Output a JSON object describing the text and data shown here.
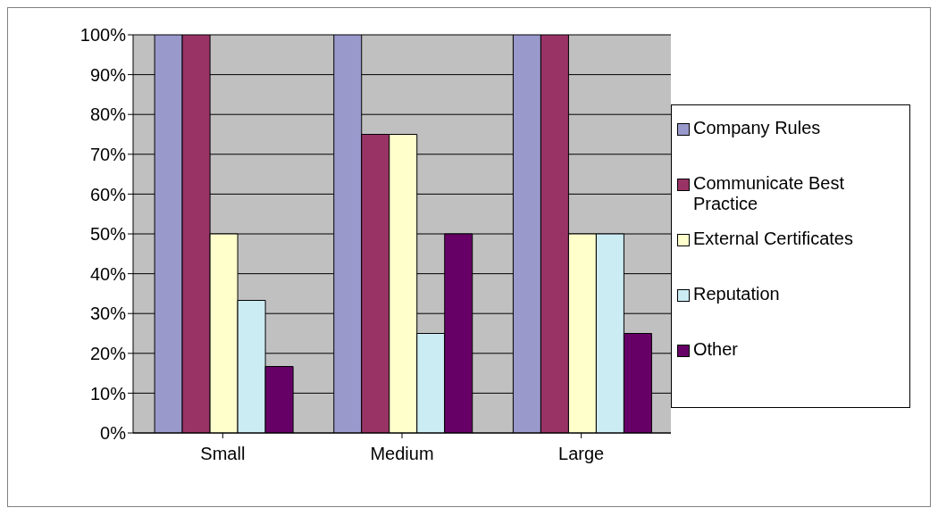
{
  "chart_data": {
    "type": "bar",
    "categories": [
      "Small",
      "Medium",
      "Large"
    ],
    "series": [
      {
        "name": "Company Rules",
        "color": "#9999cc",
        "values": [
          100,
          100,
          100
        ]
      },
      {
        "name": "Communicate Best Practice",
        "color": "#993366",
        "values": [
          100,
          75,
          100
        ]
      },
      {
        "name": "External Certificates",
        "color": "#ffffcc",
        "values": [
          50,
          75,
          50
        ]
      },
      {
        "name": "Reputation",
        "color": "#ccecf4",
        "values": [
          33.3,
          25,
          50
        ]
      },
      {
        "name": "Other",
        "color": "#660066",
        "values": [
          16.7,
          50,
          25
        ]
      }
    ],
    "ylim": [
      0,
      100
    ],
    "yticks": [
      {
        "value": 0,
        "label": "0%"
      },
      {
        "value": 10,
        "label": "10%"
      },
      {
        "value": 20,
        "label": "20%"
      },
      {
        "value": 30,
        "label": "30%"
      },
      {
        "value": 40,
        "label": "40%"
      },
      {
        "value": 50,
        "label": "50%"
      },
      {
        "value": 60,
        "label": "60%"
      },
      {
        "value": 70,
        "label": "70%"
      },
      {
        "value": 80,
        "label": "80%"
      },
      {
        "value": 90,
        "label": "90%"
      },
      {
        "value": 100,
        "label": "100%"
      }
    ],
    "grid": "y",
    "legend": "right"
  }
}
